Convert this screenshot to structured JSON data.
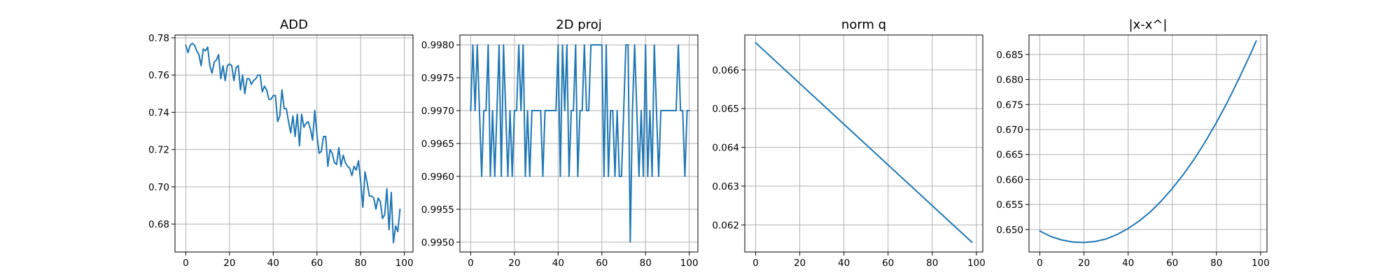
{
  "figure": {
    "line_color": "#1f77b4",
    "grid": true
  },
  "chart_data": [
    {
      "type": "line",
      "title": "ADD",
      "xlabel": "",
      "ylabel": "",
      "xlim": [
        -4.95,
        103.95
      ],
      "ylim": [
        0.665,
        0.7815
      ],
      "xticks": [
        0,
        20,
        40,
        60,
        80,
        100
      ],
      "yticks": [
        0.68,
        0.7,
        0.72,
        0.74,
        0.76,
        0.78
      ],
      "tick_decimals": 2,
      "x_start": 0,
      "values": [
        0.776,
        0.772,
        0.776,
        0.777,
        0.776,
        0.773,
        0.771,
        0.765,
        0.774,
        0.773,
        0.775,
        0.765,
        0.761,
        0.767,
        0.768,
        0.771,
        0.758,
        0.765,
        0.757,
        0.765,
        0.766,
        0.765,
        0.757,
        0.764,
        0.765,
        0.752,
        0.76,
        0.75,
        0.758,
        0.758,
        0.755,
        0.757,
        0.758,
        0.76,
        0.76,
        0.751,
        0.754,
        0.752,
        0.747,
        0.747,
        0.749,
        0.749,
        0.735,
        0.738,
        0.752,
        0.742,
        0.742,
        0.735,
        0.729,
        0.738,
        0.727,
        0.739,
        0.722,
        0.739,
        0.732,
        0.734,
        0.735,
        0.731,
        0.725,
        0.741,
        0.728,
        0.718,
        0.719,
        0.727,
        0.727,
        0.711,
        0.72,
        0.718,
        0.713,
        0.712,
        0.721,
        0.711,
        0.717,
        0.713,
        0.711,
        0.71,
        0.706,
        0.711,
        0.709,
        0.714,
        0.703,
        0.689,
        0.708,
        0.702,
        0.695,
        0.695,
        0.694,
        0.688,
        0.694,
        0.692,
        0.683,
        0.685,
        0.699,
        0.677,
        0.697,
        0.67,
        0.679,
        0.676,
        0.688
      ]
    },
    {
      "type": "line",
      "title": "2D proj",
      "xlabel": "",
      "ylabel": "",
      "xlim": [
        -4.95,
        103.95
      ],
      "ylim": [
        0.99485,
        0.99815
      ],
      "xticks": [
        0,
        20,
        40,
        60,
        80,
        100
      ],
      "yticks": [
        0.995,
        0.9955,
        0.996,
        0.9965,
        0.997,
        0.9975,
        0.998
      ],
      "tick_decimals": 4,
      "x_start": 0,
      "values": [
        0.997,
        0.998,
        0.997,
        0.998,
        0.997,
        0.996,
        0.997,
        0.997,
        0.998,
        0.996,
        0.997,
        0.996,
        0.997,
        0.998,
        0.996,
        0.998,
        0.997,
        0.996,
        0.997,
        0.996,
        0.997,
        0.997,
        0.998,
        0.997,
        0.998,
        0.996,
        0.997,
        0.996,
        0.997,
        0.997,
        0.997,
        0.997,
        0.997,
        0.996,
        0.997,
        0.997,
        0.997,
        0.997,
        0.997,
        0.997,
        0.998,
        0.996,
        0.998,
        0.997,
        0.998,
        0.996,
        0.997,
        0.997,
        0.998,
        0.996,
        0.997,
        0.997,
        0.998,
        0.997,
        0.997,
        0.998,
        0.998,
        0.998,
        0.998,
        0.998,
        0.998,
        0.996,
        0.998,
        0.996,
        0.997,
        0.997,
        0.996,
        0.997,
        0.996,
        0.996,
        0.997,
        0.998,
        0.998,
        0.995,
        0.997,
        0.998,
        0.997,
        0.996,
        0.997,
        0.996,
        0.998,
        0.996,
        0.997,
        0.996,
        0.998,
        0.997,
        0.996,
        0.997,
        0.997,
        0.997,
        0.997,
        0.997,
        0.997,
        0.997,
        0.997,
        0.998,
        0.997,
        0.997,
        0.996,
        0.997,
        0.997
      ]
    },
    {
      "type": "line",
      "title": "norm q",
      "xlabel": "",
      "ylabel": "",
      "xlim": [
        -4.9,
        102.9
      ],
      "ylim": [
        0.0613,
        0.0669
      ],
      "xticks": [
        0,
        20,
        40,
        60,
        80,
        100
      ],
      "yticks": [
        0.062,
        0.063,
        0.064,
        0.065,
        0.066
      ],
      "tick_decimals": 3,
      "x": [
        0,
        98
      ],
      "values": [
        0.0667,
        0.06155
      ]
    },
    {
      "type": "line",
      "title": "|x-x^|",
      "xlabel": "",
      "ylabel": "",
      "xlim": [
        -4.9,
        102.9
      ],
      "ylim": [
        0.6455,
        0.6889
      ],
      "xticks": [
        0,
        20,
        40,
        60,
        80,
        100
      ],
      "yticks": [
        0.65,
        0.655,
        0.66,
        0.665,
        0.67,
        0.675,
        0.68,
        0.685
      ],
      "tick_decimals": 3,
      "x": [
        0,
        5,
        10,
        15,
        20,
        25,
        30,
        35,
        40,
        45,
        50,
        55,
        60,
        65,
        70,
        75,
        80,
        85,
        90,
        95,
        98
      ],
      "values": [
        0.6497,
        0.6486,
        0.6479,
        0.6475,
        0.6474,
        0.6476,
        0.6481,
        0.649,
        0.6502,
        0.6517,
        0.6535,
        0.6557,
        0.6582,
        0.661,
        0.6641,
        0.6676,
        0.6714,
        0.6755,
        0.68,
        0.6847,
        0.6877
      ]
    }
  ]
}
